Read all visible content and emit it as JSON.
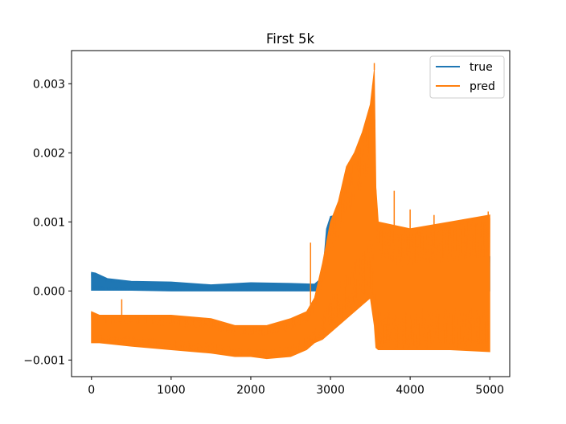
{
  "chart_data": {
    "type": "line",
    "title": "First 5k",
    "xlabel": "",
    "ylabel": "",
    "xlim": [
      -250,
      5250
    ],
    "ylim": [
      -0.00124,
      0.00348
    ],
    "x_ticks": [
      0,
      1000,
      2000,
      3000,
      4000,
      5000
    ],
    "x_tick_labels": [
      "0",
      "1000",
      "2000",
      "3000",
      "4000",
      "5000"
    ],
    "y_ticks": [
      -0.001,
      0.0,
      0.001,
      0.002,
      0.003
    ],
    "y_tick_labels": [
      "−0.001",
      "0.000",
      "0.001",
      "0.002",
      "0.003"
    ],
    "grid": false,
    "legend_position": "top-right",
    "series": [
      {
        "name": "true",
        "color": "#1f77b4",
        "envelope": {
          "x": [
            0,
            50,
            200,
            500,
            1000,
            1500,
            2000,
            2500,
            2800,
            2900,
            2950,
            3000,
            3300,
            3550,
            3600,
            3650,
            4000,
            4500,
            5000
          ],
          "upper": [
            0.00027,
            0.00026,
            0.00018,
            0.00014,
            0.00013,
            9e-05,
            0.00012,
            0.00011,
            0.0001,
            0.0002,
            0.0009,
            0.00108,
            0.00115,
            0.0011,
            0.0007,
            0.0005,
            0.0005,
            0.0005,
            0.0005
          ],
          "lower": [
            1e-05,
            1e-05,
            1e-05,
            1e-05,
            0.0,
            0.0,
            0.0,
            0.0,
            0.0,
            0.0,
            0.0,
            0.0,
            0.0,
            0.0,
            0.0,
            0.0,
            0.0,
            0.0,
            0.0
          ]
        }
      },
      {
        "name": "pred",
        "color": "#ff7f0e",
        "envelope": {
          "x": [
            0,
            100,
            500,
            1000,
            1500,
            1800,
            2000,
            2200,
            2500,
            2700,
            2750,
            2800,
            2900,
            3000,
            3100,
            3200,
            3300,
            3400,
            3500,
            3550,
            3570,
            3600,
            4000,
            4500,
            5000
          ],
          "upper": [
            -0.0003,
            -0.00035,
            -0.00035,
            -0.00035,
            -0.0004,
            -0.0005,
            -0.0005,
            -0.0005,
            -0.0004,
            -0.0003,
            -0.0002,
            -0.0001,
            0.0004,
            0.001,
            0.0013,
            0.0018,
            0.002,
            0.0023,
            0.0027,
            0.0032,
            0.0015,
            0.001,
            0.0009,
            0.001,
            0.0011
          ],
          "lower": [
            -0.00075,
            -0.00075,
            -0.0008,
            -0.00085,
            -0.0009,
            -0.00095,
            -0.00095,
            -0.00098,
            -0.00095,
            -0.00085,
            -0.0008,
            -0.00075,
            -0.0007,
            -0.0006,
            -0.0005,
            -0.0004,
            -0.0003,
            -0.0002,
            -0.0001,
            -0.0005,
            -0.00082,
            -0.00085,
            -0.00085,
            -0.00085,
            -0.00088
          ]
        },
        "spikes": [
          {
            "x": 380,
            "y": -0.00012
          },
          {
            "x": 2750,
            "y": 0.0007
          },
          {
            "x": 3550,
            "y": 0.0033
          },
          {
            "x": 3800,
            "y": 0.00145
          },
          {
            "x": 4000,
            "y": 0.00118
          },
          {
            "x": 4300,
            "y": 0.0011
          },
          {
            "x": 4980,
            "y": 0.00115
          }
        ]
      }
    ]
  }
}
